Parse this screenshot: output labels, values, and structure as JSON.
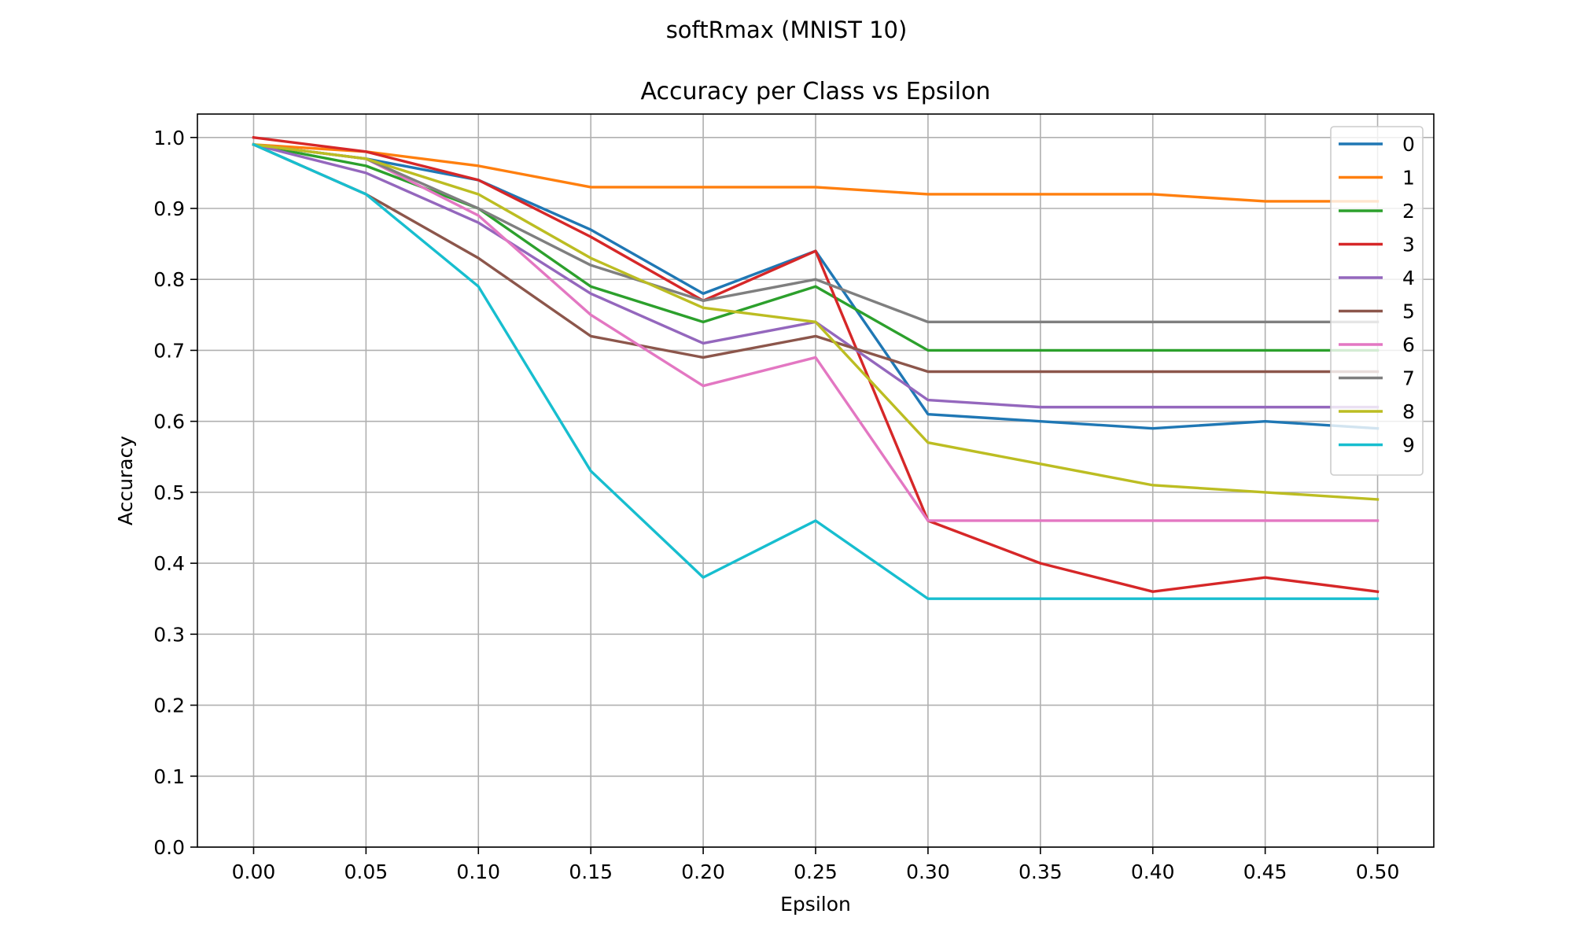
{
  "chart_data": {
    "type": "line",
    "suptitle": "softRmax (MNIST 10)",
    "title": "Accuracy per Class vs Epsilon",
    "xlabel": "Epsilon",
    "ylabel": "Accuracy",
    "x": [
      0.0,
      0.05,
      0.1,
      0.15,
      0.2,
      0.25,
      0.3,
      0.35,
      0.4,
      0.45,
      0.5
    ],
    "xticks": [
      "0.00",
      "0.05",
      "0.10",
      "0.15",
      "0.20",
      "0.25",
      "0.30",
      "0.35",
      "0.40",
      "0.45",
      "0.50"
    ],
    "yticks": [
      "0.0",
      "0.1",
      "0.2",
      "0.3",
      "0.4",
      "0.5",
      "0.6",
      "0.7",
      "0.8",
      "0.9",
      "1.0"
    ],
    "xlim": [
      -0.025,
      0.525
    ],
    "ylim": [
      0.0,
      1.033
    ],
    "grid": true,
    "legend_position": "top-right",
    "series": [
      {
        "name": "0",
        "color": "#1f77b4",
        "values": [
          0.99,
          0.97,
          0.94,
          0.87,
          0.78,
          0.84,
          0.61,
          0.6,
          0.59,
          0.6,
          0.59
        ]
      },
      {
        "name": "1",
        "color": "#ff7f0e",
        "values": [
          0.99,
          0.98,
          0.96,
          0.93,
          0.93,
          0.93,
          0.92,
          0.92,
          0.92,
          0.91,
          0.91
        ]
      },
      {
        "name": "2",
        "color": "#2ca02c",
        "values": [
          0.99,
          0.96,
          0.9,
          0.79,
          0.74,
          0.79,
          0.7,
          0.7,
          0.7,
          0.7,
          0.7
        ]
      },
      {
        "name": "3",
        "color": "#d62728",
        "values": [
          1.0,
          0.98,
          0.94,
          0.86,
          0.77,
          0.84,
          0.46,
          0.4,
          0.36,
          0.38,
          0.36
        ]
      },
      {
        "name": "4",
        "color": "#9467bd",
        "values": [
          0.99,
          0.95,
          0.88,
          0.78,
          0.71,
          0.74,
          0.63,
          0.62,
          0.62,
          0.62,
          0.62
        ]
      },
      {
        "name": "5",
        "color": "#8c564b",
        "values": [
          0.99,
          0.92,
          0.83,
          0.72,
          0.69,
          0.72,
          0.67,
          0.67,
          0.67,
          0.67,
          0.67
        ]
      },
      {
        "name": "6",
        "color": "#e377c2",
        "values": [
          0.99,
          0.97,
          0.89,
          0.75,
          0.65,
          0.69,
          0.46,
          0.46,
          0.46,
          0.46,
          0.46
        ]
      },
      {
        "name": "7",
        "color": "#7f7f7f",
        "values": [
          0.99,
          0.97,
          0.9,
          0.82,
          0.77,
          0.8,
          0.74,
          0.74,
          0.74,
          0.74,
          0.74
        ]
      },
      {
        "name": "8",
        "color": "#bcbd22",
        "values": [
          0.99,
          0.97,
          0.92,
          0.83,
          0.76,
          0.74,
          0.57,
          0.54,
          0.51,
          0.5,
          0.49
        ]
      },
      {
        "name": "9",
        "color": "#17becf",
        "values": [
          0.99,
          0.92,
          0.79,
          0.53,
          0.38,
          0.46,
          0.35,
          0.35,
          0.35,
          0.35,
          0.35
        ]
      }
    ]
  }
}
